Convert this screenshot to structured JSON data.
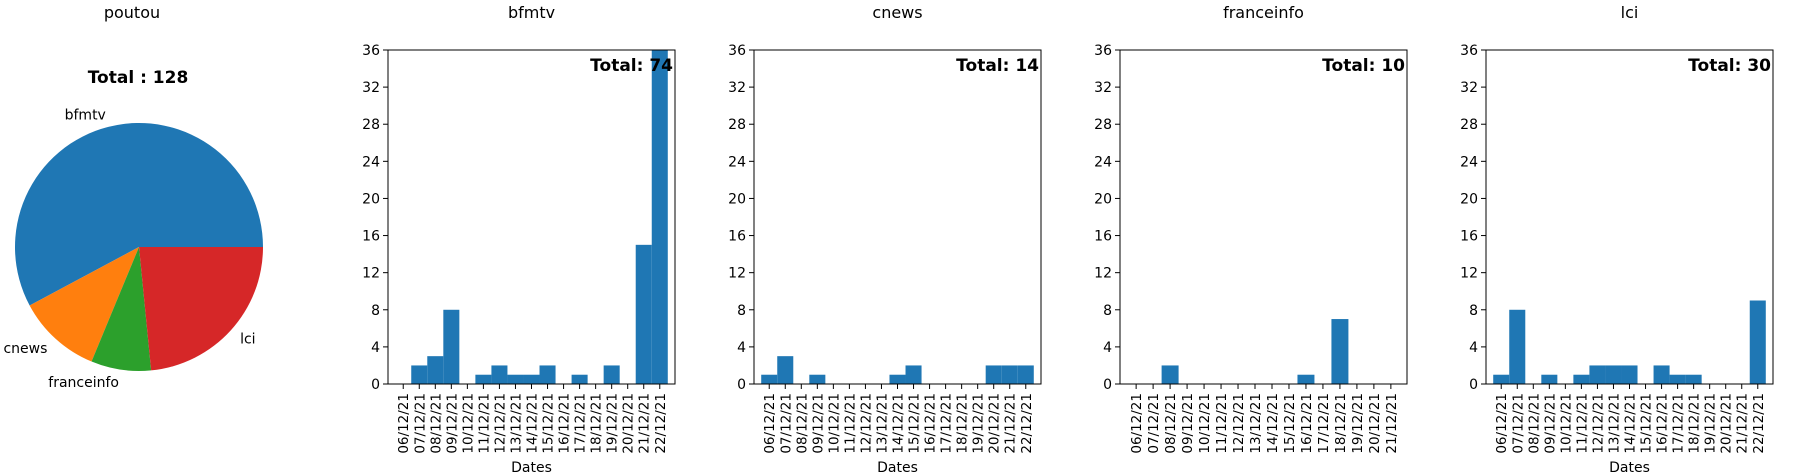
{
  "colors": {
    "bar": "#1f77b4",
    "pie": [
      "#1f77b4",
      "#ff7f0e",
      "#2ca02c",
      "#d62728"
    ]
  },
  "pie_panel": {
    "title": "poutou",
    "total_label": "Total : 128"
  },
  "chart_data": [
    {
      "type": "pie",
      "title": "poutou",
      "annotation": "Total : 128",
      "labels": [
        "bfmtv",
        "cnews",
        "franceinfo",
        "lci"
      ],
      "values": [
        74,
        14,
        10,
        30
      ]
    },
    {
      "type": "bar",
      "title": "bfmtv",
      "annotation": "Total: 74",
      "xlabel": "Dates",
      "ylim": [
        0,
        36
      ],
      "yticks": [
        "0",
        "4",
        "8",
        "12",
        "16",
        "20",
        "24",
        "28",
        "32",
        "36"
      ],
      "categories": [
        "06/12/21",
        "07/12/21",
        "08/12/21",
        "09/12/21",
        "10/12/21",
        "11/12/21",
        "12/12/21",
        "13/12/21",
        "14/12/21",
        "15/12/21",
        "16/12/21",
        "17/12/21",
        "18/12/21",
        "19/12/21",
        "20/12/21",
        "21/12/21",
        "22/12/21"
      ],
      "values": [
        0,
        2,
        3,
        8,
        0,
        1,
        2,
        1,
        1,
        2,
        0,
        1,
        0,
        2,
        0,
        15,
        36
      ]
    },
    {
      "type": "bar",
      "title": "cnews",
      "annotation": "Total: 14",
      "xlabel": "Dates",
      "ylim": [
        0,
        36
      ],
      "yticks": [
        "0",
        "4",
        "8",
        "12",
        "16",
        "20",
        "24",
        "28",
        "32",
        "36"
      ],
      "categories": [
        "06/12/21",
        "07/12/21",
        "08/12/21",
        "09/12/21",
        "10/12/21",
        "11/12/21",
        "12/12/21",
        "13/12/21",
        "14/12/21",
        "15/12/21",
        "16/12/21",
        "17/12/21",
        "18/12/21",
        "19/12/21",
        "20/12/21",
        "21/12/21",
        "22/12/21"
      ],
      "values": [
        1,
        3,
        0,
        1,
        0,
        0,
        0,
        0,
        1,
        2,
        0,
        0,
        0,
        0,
        2,
        2,
        2
      ]
    },
    {
      "type": "bar",
      "title": "franceinfo",
      "annotation": "Total: 10",
      "xlabel": "",
      "ylim": [
        0,
        36
      ],
      "yticks": [
        "0",
        "4",
        "8",
        "12",
        "16",
        "20",
        "24",
        "28",
        "32",
        "36"
      ],
      "categories": [
        "06/12/21",
        "07/12/21",
        "08/12/21",
        "09/12/21",
        "10/12/21",
        "11/12/21",
        "12/12/21",
        "13/12/21",
        "14/12/21",
        "15/12/21",
        "16/12/21",
        "17/12/21",
        "18/12/21",
        "19/12/21",
        "20/12/21",
        "21/12/21"
      ],
      "values": [
        0,
        0,
        2,
        0,
        0,
        0,
        0,
        0,
        0,
        0,
        1,
        0,
        7,
        0,
        0,
        0
      ]
    },
    {
      "type": "bar",
      "title": "lci",
      "annotation": "Total: 30",
      "xlabel": "Dates",
      "ylim": [
        0,
        36
      ],
      "yticks": [
        "0",
        "4",
        "8",
        "12",
        "16",
        "20",
        "24",
        "28",
        "32",
        "36"
      ],
      "categories": [
        "06/12/21",
        "07/12/21",
        "08/12/21",
        "09/12/21",
        "10/12/21",
        "11/12/21",
        "12/12/21",
        "13/12/21",
        "14/12/21",
        "15/12/21",
        "16/12/21",
        "17/12/21",
        "18/12/21",
        "19/12/21",
        "20/12/21",
        "21/12/21",
        "22/12/21"
      ],
      "values": [
        1,
        8,
        0,
        1,
        0,
        1,
        2,
        2,
        2,
        0,
        2,
        1,
        1,
        0,
        0,
        0,
        9
      ]
    }
  ]
}
